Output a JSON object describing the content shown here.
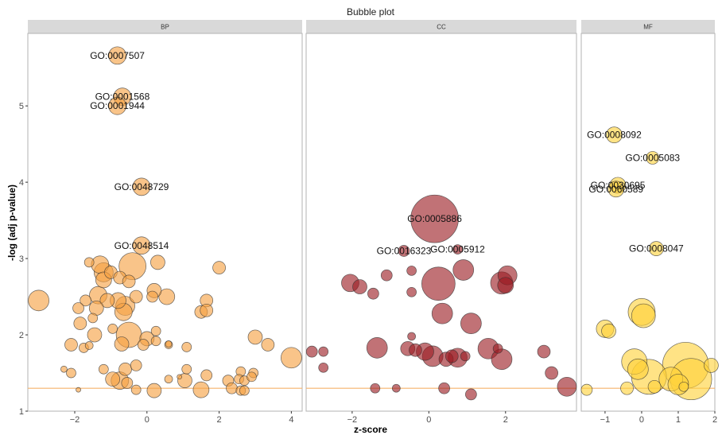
{
  "chart_data": {
    "type": "scatter",
    "title": "Bubble plot",
    "xlabel": "z-score",
    "ylabel": "-log (adj p-value)",
    "ylim": [
      1,
      5.95
    ],
    "yticks": [
      1,
      2,
      3,
      4,
      5
    ],
    "threshold": 1.3,
    "colors": {
      "BP": "#F5A040",
      "CC": "#9B1C22",
      "MF": "#FFD23A",
      "threshold_line": "#F5B26B",
      "strip_bg": "#D9D9D9",
      "panel_border": "#B3B3B3"
    },
    "panels": [
      {
        "name": "BP",
        "xlim": [
          -3.3,
          4.3
        ],
        "xticks": [
          -2,
          0,
          2,
          4
        ],
        "labeled_points": [
          {
            "label": "GO:0007507",
            "x": -0.82,
            "y": 5.66,
            "size": 11
          },
          {
            "label": "GO:0001568",
            "x": -0.68,
            "y": 5.12,
            "size": 11
          },
          {
            "label": "GO:0001944",
            "x": -0.82,
            "y": 5.0,
            "size": 11
          },
          {
            "label": "GO:0048729",
            "x": -0.15,
            "y": 3.94,
            "size": 11
          },
          {
            "label": "GO:0048514",
            "x": -0.15,
            "y": 3.17,
            "size": 11
          }
        ],
        "points": [
          {
            "x": -3.0,
            "y": 2.45,
            "size": 13
          },
          {
            "x": -1.3,
            "y": 2.92,
            "size": 11
          },
          {
            "x": -1.6,
            "y": 2.95,
            "size": 6
          },
          {
            "x": -1.2,
            "y": 2.82,
            "size": 12
          },
          {
            "x": -1.0,
            "y": 2.82,
            "size": 8
          },
          {
            "x": -0.75,
            "y": 2.75,
            "size": 8
          },
          {
            "x": -0.4,
            "y": 2.9,
            "size": 17
          },
          {
            "x": 0.3,
            "y": 2.95,
            "size": 9
          },
          {
            "x": 2.0,
            "y": 2.88,
            "size": 8
          },
          {
            "x": -1.2,
            "y": 2.72,
            "size": 10
          },
          {
            "x": -0.5,
            "y": 2.7,
            "size": 8
          },
          {
            "x": 0.2,
            "y": 2.58,
            "size": 9
          },
          {
            "x": 0.55,
            "y": 2.5,
            "size": 10
          },
          {
            "x": -1.35,
            "y": 2.52,
            "size": 11
          },
          {
            "x": -1.7,
            "y": 2.45,
            "size": 7
          },
          {
            "x": -1.1,
            "y": 2.45,
            "size": 9
          },
          {
            "x": -0.8,
            "y": 2.45,
            "size": 10
          },
          {
            "x": -0.6,
            "y": 2.38,
            "size": 12
          },
          {
            "x": -0.3,
            "y": 2.5,
            "size": 8
          },
          {
            "x": 0.15,
            "y": 2.5,
            "size": 7
          },
          {
            "x": 1.65,
            "y": 2.45,
            "size": 8
          },
          {
            "x": -1.9,
            "y": 2.35,
            "size": 7
          },
          {
            "x": -1.4,
            "y": 2.35,
            "size": 9
          },
          {
            "x": -0.65,
            "y": 2.3,
            "size": 11
          },
          {
            "x": -1.5,
            "y": 2.22,
            "size": 6
          },
          {
            "x": 1.5,
            "y": 2.3,
            "size": 8
          },
          {
            "x": 1.65,
            "y": 2.32,
            "size": 8
          },
          {
            "x": -1.85,
            "y": 2.15,
            "size": 8
          },
          {
            "x": -1.45,
            "y": 2.0,
            "size": 9
          },
          {
            "x": -0.95,
            "y": 2.08,
            "size": 6
          },
          {
            "x": -0.5,
            "y": 2.0,
            "size": 16
          },
          {
            "x": 0.25,
            "y": 2.05,
            "size": 6
          },
          {
            "x": 0.0,
            "y": 1.95,
            "size": 9
          },
          {
            "x": 3.0,
            "y": 1.97,
            "size": 9
          },
          {
            "x": -2.1,
            "y": 1.87,
            "size": 8
          },
          {
            "x": -1.75,
            "y": 1.83,
            "size": 6
          },
          {
            "x": -1.6,
            "y": 1.86,
            "size": 5
          },
          {
            "x": -0.7,
            "y": 1.88,
            "size": 9
          },
          {
            "x": -0.1,
            "y": 1.87,
            "size": 7
          },
          {
            "x": 0.25,
            "y": 1.92,
            "size": 6
          },
          {
            "x": 0.6,
            "y": 1.87,
            "size": 5
          },
          {
            "x": 1.1,
            "y": 1.84,
            "size": 6
          },
          {
            "x": 3.35,
            "y": 1.87,
            "size": 8
          },
          {
            "x": 4.0,
            "y": 1.7,
            "size": 13
          },
          {
            "x": -2.3,
            "y": 1.55,
            "size": 4
          },
          {
            "x": -2.1,
            "y": 1.5,
            "size": 6
          },
          {
            "x": -1.2,
            "y": 1.55,
            "size": 6
          },
          {
            "x": -0.6,
            "y": 1.55,
            "size": 8
          },
          {
            "x": -0.3,
            "y": 1.6,
            "size": 7
          },
          {
            "x": 1.1,
            "y": 1.55,
            "size": 6
          },
          {
            "x": 1.65,
            "y": 1.47,
            "size": 7
          },
          {
            "x": 2.6,
            "y": 1.52,
            "size": 6
          },
          {
            "x": 2.95,
            "y": 1.5,
            "size": 6
          },
          {
            "x": 2.25,
            "y": 1.4,
            "size": 7
          },
          {
            "x": 2.55,
            "y": 1.42,
            "size": 6
          },
          {
            "x": 2.7,
            "y": 1.4,
            "size": 6
          },
          {
            "x": 2.9,
            "y": 1.45,
            "size": 6
          },
          {
            "x": -0.95,
            "y": 1.42,
            "size": 9
          },
          {
            "x": -0.75,
            "y": 1.4,
            "size": 11
          },
          {
            "x": -0.55,
            "y": 1.37,
            "size": 7
          },
          {
            "x": 0.6,
            "y": 1.42,
            "size": 5
          },
          {
            "x": 1.05,
            "y": 1.4,
            "size": 9
          },
          {
            "x": -0.3,
            "y": 1.28,
            "size": 6
          },
          {
            "x": 0.2,
            "y": 1.27,
            "size": 9
          },
          {
            "x": 1.5,
            "y": 1.28,
            "size": 10
          },
          {
            "x": -1.9,
            "y": 1.28,
            "size": 3
          },
          {
            "x": 2.35,
            "y": 1.3,
            "size": 7
          },
          {
            "x": 2.6,
            "y": 1.27,
            "size": 6
          },
          {
            "x": 2.7,
            "y": 1.27,
            "size": 6
          },
          {
            "x": 0.9,
            "y": 1.45,
            "size": 3
          },
          {
            "x": 0.6,
            "y": 1.88,
            "size": 4
          }
        ]
      },
      {
        "name": "CC",
        "xlim": [
          -3.2,
          3.85
        ],
        "xticks": [
          -2,
          0,
          2
        ],
        "labeled_points": [
          {
            "label": "GO:0005886",
            "x": 0.15,
            "y": 3.52,
            "size": 30
          },
          {
            "label": "GO:0016323",
            "x": -0.65,
            "y": 3.1,
            "size": 7
          },
          {
            "label": "GO:0005912",
            "x": 0.75,
            "y": 3.12,
            "size": 6
          }
        ],
        "points": [
          {
            "x": -2.05,
            "y": 2.68,
            "size": 11
          },
          {
            "x": -1.8,
            "y": 2.63,
            "size": 9
          },
          {
            "x": -1.1,
            "y": 2.78,
            "size": 7
          },
          {
            "x": -1.45,
            "y": 2.54,
            "size": 7
          },
          {
            "x": -0.45,
            "y": 2.84,
            "size": 6
          },
          {
            "x": -0.45,
            "y": 2.56,
            "size": 6
          },
          {
            "x": 0.25,
            "y": 2.67,
            "size": 21
          },
          {
            "x": 0.9,
            "y": 2.85,
            "size": 13
          },
          {
            "x": 2.05,
            "y": 2.78,
            "size": 12
          },
          {
            "x": 1.9,
            "y": 2.68,
            "size": 14
          },
          {
            "x": 2.0,
            "y": 2.65,
            "size": 10
          },
          {
            "x": 0.35,
            "y": 2.28,
            "size": 13
          },
          {
            "x": 1.1,
            "y": 2.15,
            "size": 13
          },
          {
            "x": -3.05,
            "y": 1.78,
            "size": 7
          },
          {
            "x": -2.75,
            "y": 1.78,
            "size": 6
          },
          {
            "x": -2.75,
            "y": 1.57,
            "size": 6
          },
          {
            "x": -1.35,
            "y": 1.83,
            "size": 13
          },
          {
            "x": -0.55,
            "y": 1.82,
            "size": 9
          },
          {
            "x": -0.45,
            "y": 1.98,
            "size": 5
          },
          {
            "x": -0.35,
            "y": 1.8,
            "size": 8
          },
          {
            "x": -0.1,
            "y": 1.78,
            "size": 11
          },
          {
            "x": 0.1,
            "y": 1.72,
            "size": 13
          },
          {
            "x": 0.45,
            "y": 1.68,
            "size": 9
          },
          {
            "x": 0.6,
            "y": 1.72,
            "size": 8
          },
          {
            "x": 0.75,
            "y": 1.7,
            "size": 12
          },
          {
            "x": 0.95,
            "y": 1.72,
            "size": 6
          },
          {
            "x": 1.55,
            "y": 1.82,
            "size": 13
          },
          {
            "x": 1.8,
            "y": 1.82,
            "size": 6
          },
          {
            "x": 1.9,
            "y": 1.68,
            "size": 13
          },
          {
            "x": 3.0,
            "y": 1.78,
            "size": 8
          },
          {
            "x": 3.2,
            "y": 1.5,
            "size": 8
          },
          {
            "x": -1.4,
            "y": 1.3,
            "size": 6
          },
          {
            "x": -0.85,
            "y": 1.3,
            "size": 5
          },
          {
            "x": 0.4,
            "y": 1.3,
            "size": 7
          },
          {
            "x": 1.1,
            "y": 1.22,
            "size": 7
          },
          {
            "x": 3.6,
            "y": 1.32,
            "size": 12
          }
        ]
      },
      {
        "name": "MF",
        "xlim": [
          -1.65,
          2.0
        ],
        "xticks": [
          -1,
          0,
          1,
          2
        ],
        "labeled_points": [
          {
            "label": "GO:0008092",
            "x": -0.75,
            "y": 4.62,
            "size": 10
          },
          {
            "label": "GO:0005083",
            "x": 0.3,
            "y": 4.32,
            "size": 8
          },
          {
            "label": "GO:0030695",
            "x": -0.65,
            "y": 3.96,
            "size": 10
          },
          {
            "label": "GO:0060589",
            "x": -0.7,
            "y": 3.91,
            "size": 10
          },
          {
            "label": "GO:0008047",
            "x": 0.4,
            "y": 3.13,
            "size": 9
          }
        ],
        "points": [
          {
            "x": 0.0,
            "y": 2.3,
            "size": 17
          },
          {
            "x": 0.05,
            "y": 2.25,
            "size": 15
          },
          {
            "x": -1.0,
            "y": 2.08,
            "size": 11
          },
          {
            "x": -0.9,
            "y": 2.05,
            "size": 9
          },
          {
            "x": -0.2,
            "y": 1.65,
            "size": 16
          },
          {
            "x": -0.1,
            "y": 1.55,
            "size": 13
          },
          {
            "x": 0.2,
            "y": 1.45,
            "size": 22
          },
          {
            "x": 0.8,
            "y": 1.42,
            "size": 15
          },
          {
            "x": 1.2,
            "y": 1.6,
            "size": 29
          },
          {
            "x": 1.35,
            "y": 1.42,
            "size": 26
          },
          {
            "x": 1.0,
            "y": 1.35,
            "size": 13
          },
          {
            "x": -1.5,
            "y": 1.28,
            "size": 7
          },
          {
            "x": -0.4,
            "y": 1.3,
            "size": 8
          },
          {
            "x": 0.35,
            "y": 1.32,
            "size": 8
          },
          {
            "x": 1.15,
            "y": 1.32,
            "size": 6
          },
          {
            "x": 1.9,
            "y": 1.6,
            "size": 9
          }
        ]
      }
    ]
  }
}
